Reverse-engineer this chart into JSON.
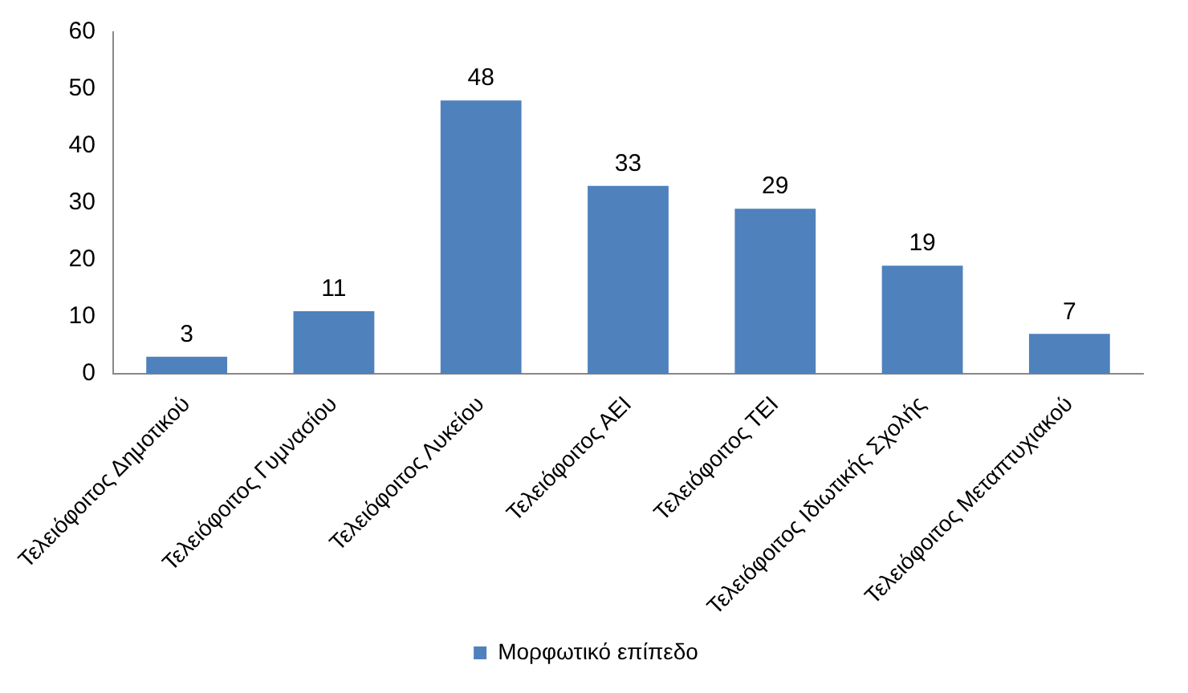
{
  "chart_data": {
    "type": "bar",
    "categories": [
      "Τελειόφοιτος Δημοτικού",
      "Τελειόφοιτος Γυμνασίου",
      "Τελειόφοιτος Λυκείου",
      "Τελειόφοιτος ΑΕΙ",
      "Τελειόφοιτος ΤΕΙ",
      "Τελειόφοιτος Ιδιωτικής Σχολής",
      "Τελειόφοιτος Μεταπτυχιακού"
    ],
    "series": [
      {
        "name": "Μορφωτικό επίπεδο",
        "color": "#4f81bd",
        "values": [
          3,
          11,
          48,
          33,
          29,
          19,
          7
        ]
      }
    ],
    "ylim": [
      0,
      60
    ],
    "yticks": [
      0,
      10,
      20,
      30,
      40,
      50,
      60
    ],
    "grid": false,
    "legend": "bottom",
    "data_labels": true
  }
}
